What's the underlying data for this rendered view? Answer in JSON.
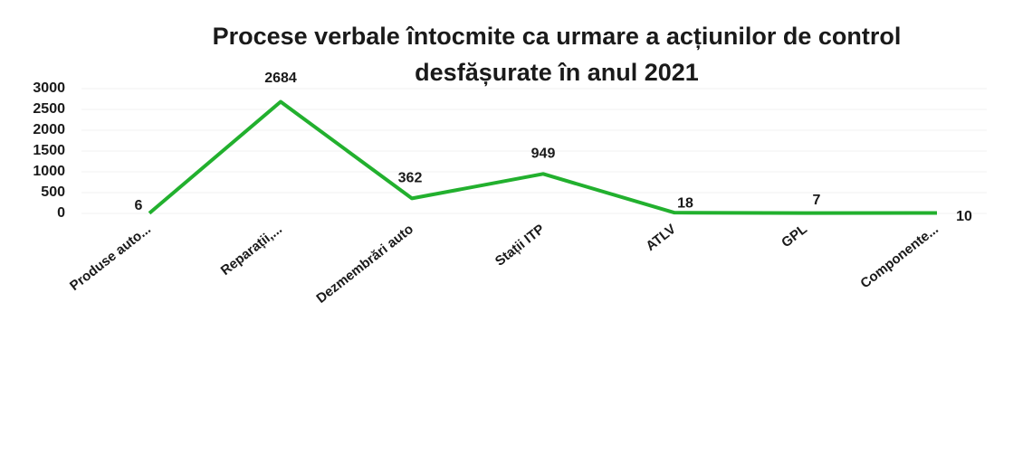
{
  "chart_data": {
    "type": "line",
    "title": [
      "Procese verbale întocmite ca urmare a acțiunilor de control",
      "desfășurate în anul 2021"
    ],
    "categories": [
      "Produse auto...",
      "Reparații,...",
      "Dezmembrări auto",
      "Stații ITP",
      "ATLV",
      "GPL",
      "Componente..."
    ],
    "series": [
      {
        "color": "#22b02e",
        "values": [
          6,
          2684,
          362,
          949,
          18,
          7,
          10
        ]
      }
    ],
    "ylim": [
      0,
      3000
    ],
    "yticks": [
      0,
      500,
      1000,
      1500,
      2000,
      2500,
      3000
    ],
    "grid": true
  }
}
